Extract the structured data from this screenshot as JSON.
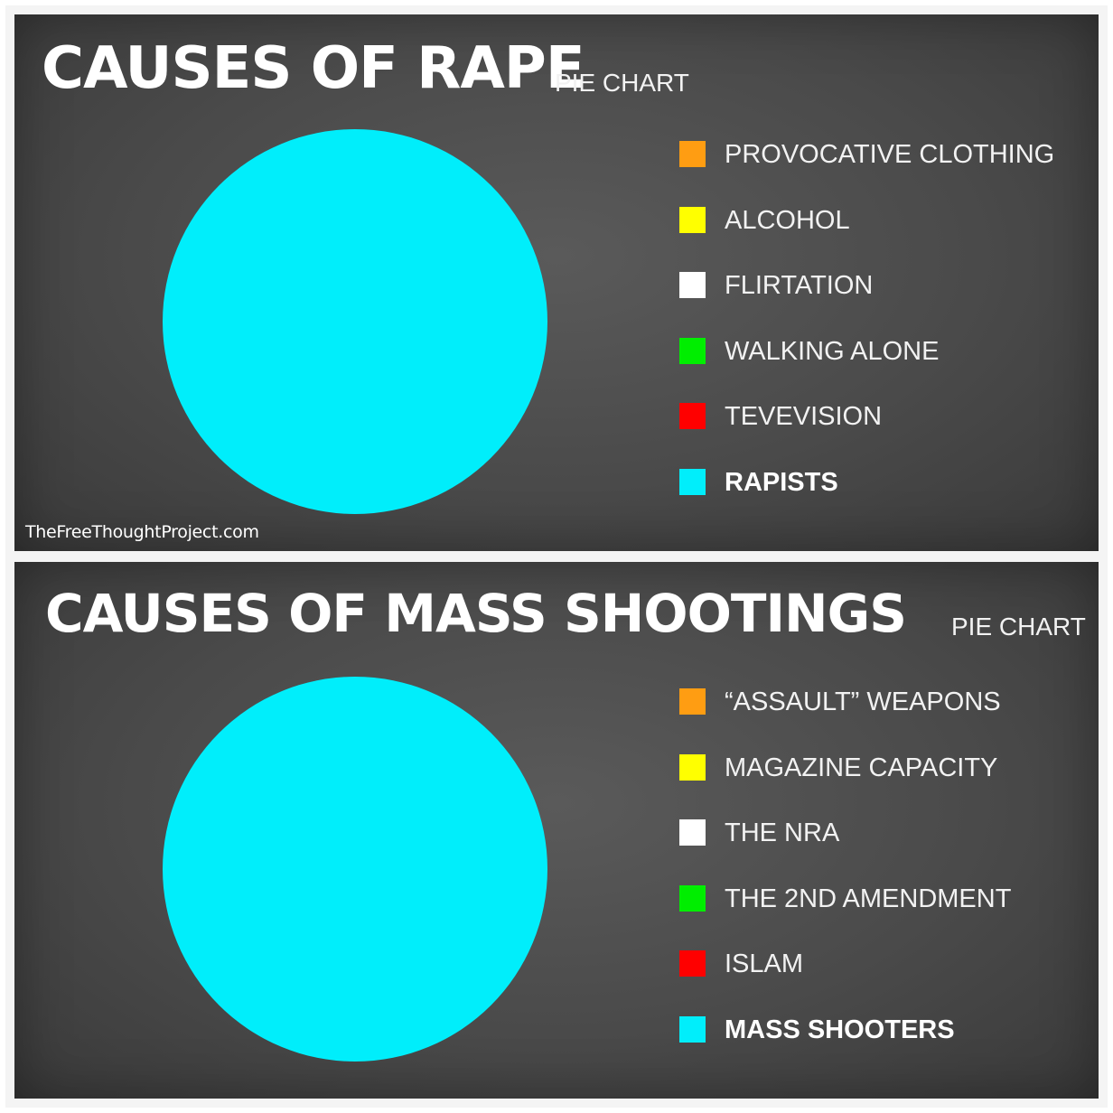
{
  "chart_data": [
    {
      "type": "pie",
      "title": "CAUSES OF RAPE",
      "subtitle": "PIE CHART",
      "legend_position": "right",
      "categories": [
        "PROVOCATIVE CLOTHING",
        "ALCOHOL",
        "FLIRTATION",
        "WALKING ALONE",
        "TEVEVISION",
        "RAPISTS"
      ],
      "values": [
        0,
        0,
        0,
        0,
        0,
        100
      ],
      "colors": [
        "#ff9d12",
        "#ffff00",
        "#ffffff",
        "#00ee00",
        "#ff0000",
        "#00eefb"
      ],
      "emphasized": [
        "RAPISTS"
      ]
    },
    {
      "type": "pie",
      "title": "CAUSES OF MASS SHOOTINGS",
      "subtitle": "PIE CHART",
      "legend_position": "right",
      "categories": [
        "“ASSAULT” WEAPONS",
        "MAGAZINE CAPACITY",
        "THE NRA",
        "THE 2ND AMENDMENT",
        "ISLAM",
        "MASS SHOOTERS"
      ],
      "values": [
        0,
        0,
        0,
        0,
        0,
        100
      ],
      "colors": [
        "#ff9d12",
        "#ffff00",
        "#ffffff",
        "#00ee00",
        "#ff0000",
        "#00eefb"
      ],
      "emphasized": [
        "MASS SHOOTERS"
      ]
    }
  ],
  "credit": "TheFreeThoughtProject.com"
}
